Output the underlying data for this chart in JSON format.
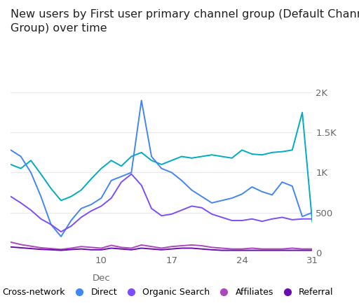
{
  "title": "New users by First user primary channel group (Default Channel\nGroup) over time",
  "ylim": [
    0,
    2000
  ],
  "yticks": [
    0,
    500,
    1000,
    1500,
    2000
  ],
  "ytick_labels": [
    "0",
    "500",
    "1K",
    "1.5K",
    "2K"
  ],
  "xlim": [
    1,
    31
  ],
  "xticks": [
    10,
    17,
    24,
    31
  ],
  "xtick_labels": [
    "10",
    "17",
    "24",
    "31"
  ],
  "series": {
    "Cross-network": {
      "color": "#00acc1",
      "values_x": [
        1,
        2,
        3,
        4,
        5,
        6,
        7,
        8,
        9,
        10,
        11,
        12,
        13,
        14,
        15,
        16,
        17,
        18,
        19,
        20,
        21,
        22,
        23,
        24,
        25,
        26,
        27,
        28,
        29,
        30,
        31
      ],
      "values_y": [
        1100,
        1050,
        1150,
        980,
        800,
        650,
        700,
        780,
        920,
        1050,
        1150,
        1080,
        1200,
        1250,
        1150,
        1100,
        1150,
        1200,
        1180,
        1200,
        1220,
        1200,
        1180,
        1280,
        1230,
        1220,
        1250,
        1260,
        1280,
        1750,
        380
      ]
    },
    "Direct": {
      "color": "#4285f4",
      "values_x": [
        1,
        2,
        3,
        4,
        5,
        6,
        7,
        8,
        9,
        10,
        11,
        12,
        13,
        14,
        15,
        16,
        17,
        18,
        19,
        20,
        21,
        22,
        23,
        24,
        25,
        26,
        27,
        28,
        29,
        30,
        31
      ],
      "values_y": [
        1280,
        1200,
        1000,
        700,
        350,
        200,
        400,
        550,
        600,
        680,
        900,
        950,
        1000,
        1900,
        1200,
        1050,
        1000,
        900,
        780,
        700,
        620,
        650,
        680,
        730,
        820,
        760,
        720,
        880,
        830,
        450,
        500
      ]
    },
    "Organic Search": {
      "color": "#7c4dff",
      "values_x": [
        1,
        2,
        3,
        4,
        5,
        6,
        7,
        8,
        9,
        10,
        11,
        12,
        13,
        14,
        15,
        16,
        17,
        18,
        19,
        20,
        21,
        22,
        23,
        24,
        25,
        26,
        27,
        28,
        29,
        30,
        31
      ],
      "values_y": [
        700,
        620,
        530,
        420,
        350,
        260,
        330,
        440,
        520,
        580,
        680,
        880,
        980,
        840,
        550,
        460,
        480,
        530,
        580,
        560,
        480,
        440,
        400,
        400,
        420,
        390,
        420,
        440,
        410,
        420,
        420
      ]
    },
    "Affiliates": {
      "color": "#ab47bc",
      "values_x": [
        1,
        2,
        3,
        4,
        5,
        6,
        7,
        8,
        9,
        10,
        11,
        12,
        13,
        14,
        15,
        16,
        17,
        18,
        19,
        20,
        21,
        22,
        23,
        24,
        25,
        26,
        27,
        28,
        29,
        30,
        31
      ],
      "values_y": [
        130,
        100,
        80,
        60,
        50,
        40,
        55,
        75,
        65,
        55,
        90,
        65,
        55,
        95,
        75,
        55,
        75,
        85,
        95,
        85,
        65,
        55,
        45,
        45,
        55,
        45,
        45,
        45,
        55,
        45,
        45
      ]
    },
    "Referral": {
      "color": "#6a0dad",
      "values_x": [
        1,
        2,
        3,
        4,
        5,
        6,
        7,
        8,
        9,
        10,
        11,
        12,
        13,
        14,
        15,
        16,
        17,
        18,
        19,
        20,
        21,
        22,
        23,
        24,
        25,
        26,
        27,
        28,
        29,
        30,
        31
      ],
      "values_y": [
        70,
        60,
        50,
        40,
        35,
        28,
        38,
        45,
        35,
        35,
        55,
        45,
        35,
        55,
        45,
        35,
        45,
        55,
        55,
        45,
        35,
        28,
        28,
        28,
        28,
        28,
        28,
        28,
        28,
        28,
        28
      ]
    }
  },
  "legend_order": [
    "Cross-network",
    "Direct",
    "Organic Search",
    "Affiliates",
    "Referral"
  ],
  "background_color": "#ffffff",
  "grid_color": "#e8e8e8",
  "title_fontsize": 11.5,
  "tick_fontsize": 9.5,
  "legend_fontsize": 9
}
